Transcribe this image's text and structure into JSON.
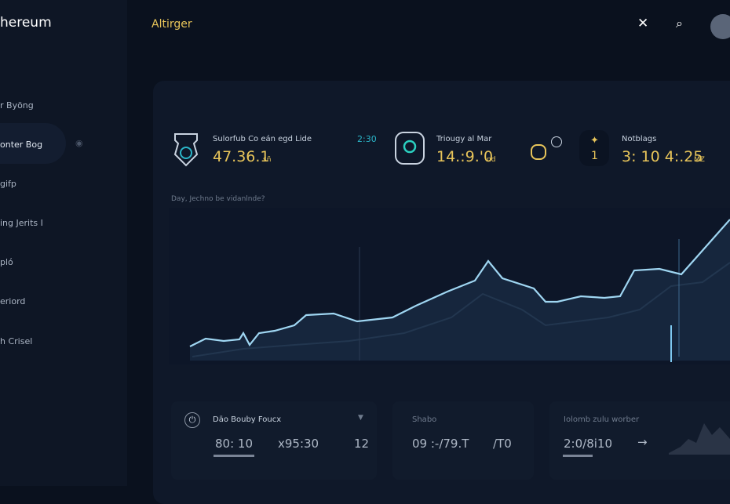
{
  "header": {
    "brand": "hereum",
    "title": "Altirger"
  },
  "sidebar": {
    "items": [
      "r Byöng",
      "onter Bog",
      "gifp",
      "ing Jerits I",
      "pló",
      "eriord",
      "h Crisel"
    ]
  },
  "stats": [
    {
      "label": "Sulorfub Co eán egd Lide",
      "value": "47.36.1",
      "unit": "sñ",
      "time": "2:30"
    },
    {
      "label": "Triougy al Mar",
      "value": "14.:9.'0",
      "unit": "nd"
    },
    {
      "label": "Notblags",
      "badge": "1",
      "value": "3: 10 4:.25",
      "unit": "MZ"
    }
  ],
  "chart": {
    "caption": "Day, Jechno be vidanlnde?"
  },
  "bottom": [
    {
      "title": "Däo Bouby Foucx",
      "values": [
        "80: 10",
        "x95:30",
        "12"
      ]
    },
    {
      "title": "Shabo",
      "values": [
        "09 :-/79.T",
        "/T0"
      ]
    },
    {
      "title": "Iolomb zulu worber",
      "values": [
        "2:0/8i10",
        "→"
      ]
    }
  ]
}
